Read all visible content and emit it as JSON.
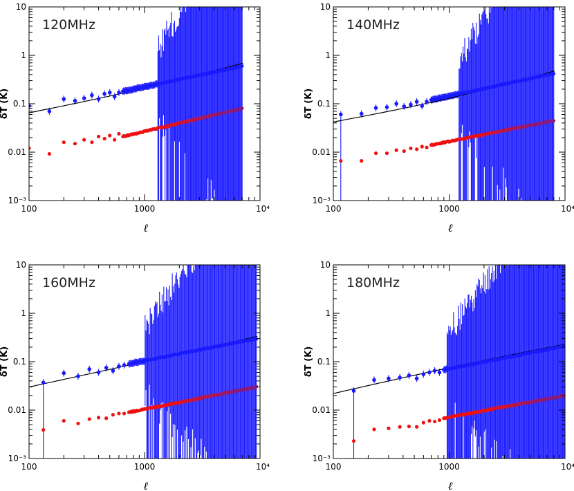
{
  "chart_data": [
    {
      "type": "scatter",
      "title": "120MHz",
      "xlabel": "ℓ",
      "ylabel": "δT (K)",
      "xscale": "log",
      "yscale": "log",
      "xlim": [
        100,
        10000
      ],
      "ylim": [
        0.001,
        10
      ],
      "xticks": [
        "100",
        "1000",
        "10⁴"
      ],
      "yticks": [
        "10⁻³",
        "0.01",
        "0.1",
        "1",
        "10"
      ],
      "ell_max": 7000,
      "model": {
        "at_100": 0.065,
        "at_max": 0.68,
        "at_1000": 0.21
      },
      "blue_points": [
        [
          100,
          0.09
        ],
        [
          150,
          0.07
        ],
        [
          200,
          0.125
        ],
        [
          250,
          0.115
        ],
        [
          300,
          0.13
        ],
        [
          350,
          0.15
        ],
        [
          400,
          0.125
        ],
        [
          450,
          0.16
        ],
        [
          500,
          0.17
        ],
        [
          550,
          0.14
        ],
        [
          600,
          0.17
        ],
        [
          650,
          0.18
        ]
      ],
      "blue_end": 0.6,
      "red_points": [
        [
          100,
          0.012
        ],
        [
          150,
          0.0092
        ],
        [
          200,
          0.016
        ],
        [
          250,
          0.015
        ],
        [
          300,
          0.018
        ],
        [
          350,
          0.016
        ],
        [
          400,
          0.021
        ],
        [
          450,
          0.019
        ],
        [
          500,
          0.022
        ],
        [
          550,
          0.018
        ],
        [
          600,
          0.024
        ],
        [
          650,
          0.021
        ]
      ],
      "red_end": 0.08,
      "errorbar_growth_from": 1300,
      "errorbar_min": 0.001,
      "errorbar_max": 10
    },
    {
      "type": "scatter",
      "title": "140MHz",
      "xlabel": "ℓ",
      "ylabel": "δT (K)",
      "xscale": "log",
      "yscale": "log",
      "xlim": [
        100,
        10000
      ],
      "ylim": [
        0.001,
        10
      ],
      "xticks": [
        "100",
        "1000",
        "10⁴"
      ],
      "yticks": [
        "10⁻³",
        "0.01",
        "0.1",
        "1",
        "10"
      ],
      "ell_max": 8000,
      "model": {
        "at_100": 0.042,
        "at_max": 0.47,
        "at_1000": 0.13
      },
      "blue_points": [
        [
          116,
          0.06
        ],
        [
          175,
          0.062
        ],
        [
          233,
          0.082
        ],
        [
          290,
          0.085
        ],
        [
          350,
          0.1
        ],
        [
          408,
          0.088
        ],
        [
          466,
          0.096
        ],
        [
          525,
          0.11
        ],
        [
          583,
          0.09
        ],
        [
          640,
          0.11
        ],
        [
          700,
          0.12
        ]
      ],
      "blue_end": 0.42,
      "red_points": [
        [
          116,
          0.0066
        ],
        [
          175,
          0.0066
        ],
        [
          233,
          0.0095
        ],
        [
          290,
          0.0095
        ],
        [
          350,
          0.011
        ],
        [
          408,
          0.0105
        ],
        [
          466,
          0.012
        ],
        [
          525,
          0.0115
        ],
        [
          583,
          0.013
        ],
        [
          640,
          0.0125
        ],
        [
          700,
          0.014
        ]
      ],
      "red_end": 0.045,
      "errorbar_growth_from": 1200,
      "errorbar_min": 0.001,
      "errorbar_max": 10
    },
    {
      "type": "scatter",
      "title": "160MHz",
      "xlabel": "ℓ",
      "ylabel": "δT (K)",
      "xscale": "log",
      "yscale": "log",
      "xlim": [
        100,
        10000
      ],
      "ylim": [
        0.001,
        10
      ],
      "xticks": [
        "100",
        "1000",
        "10⁴"
      ],
      "yticks": [
        "10⁻³",
        "0.01",
        "0.1",
        "1",
        "10"
      ],
      "ell_max": 9300,
      "model": {
        "at_100": 0.03,
        "at_max": 0.33,
        "at_1000": 0.1
      },
      "blue_points": [
        [
          133,
          0.037
        ],
        [
          200,
          0.058
        ],
        [
          266,
          0.05
        ],
        [
          333,
          0.07
        ],
        [
          400,
          0.06
        ],
        [
          466,
          0.075
        ],
        [
          533,
          0.065
        ],
        [
          600,
          0.08
        ],
        [
          666,
          0.085
        ],
        [
          733,
          0.09
        ]
      ],
      "blue_end": 0.3,
      "red_points": [
        [
          133,
          0.0039
        ],
        [
          200,
          0.006
        ],
        [
          266,
          0.0053
        ],
        [
          333,
          0.0065
        ],
        [
          400,
          0.007
        ],
        [
          466,
          0.0068
        ],
        [
          533,
          0.008
        ],
        [
          600,
          0.0085
        ],
        [
          666,
          0.0085
        ],
        [
          733,
          0.009
        ]
      ],
      "red_end": 0.03,
      "errorbar_growth_from": 1000,
      "errorbar_min": 0.001,
      "errorbar_max": 10
    },
    {
      "type": "scatter",
      "title": "180MHz",
      "xlabel": "ℓ",
      "ylabel": "δT (K)",
      "xscale": "log",
      "yscale": "log",
      "xlim": [
        100,
        10000
      ],
      "ylim": [
        0.001,
        10
      ],
      "xticks": [
        "100",
        "1000",
        "10⁴"
      ],
      "yticks": [
        "10⁻³",
        "0.01",
        "0.1",
        "1",
        "10"
      ],
      "ell_max": 10000,
      "model": {
        "at_100": 0.022,
        "at_max": 0.23,
        "at_1000": 0.075
      },
      "blue_points": [
        [
          150,
          0.025
        ],
        [
          225,
          0.042
        ],
        [
          300,
          0.045
        ],
        [
          375,
          0.047
        ],
        [
          450,
          0.052
        ],
        [
          525,
          0.045
        ],
        [
          600,
          0.055
        ],
        [
          675,
          0.06
        ],
        [
          750,
          0.065
        ],
        [
          825,
          0.06
        ],
        [
          900,
          0.068
        ]
      ],
      "blue_end": 0.21,
      "red_points": [
        [
          150,
          0.0023
        ],
        [
          225,
          0.004
        ],
        [
          300,
          0.0042
        ],
        [
          375,
          0.0045
        ],
        [
          450,
          0.0046
        ],
        [
          525,
          0.0045
        ],
        [
          600,
          0.0055
        ],
        [
          675,
          0.006
        ],
        [
          750,
          0.0058
        ],
        [
          825,
          0.0062
        ],
        [
          900,
          0.0068
        ]
      ],
      "red_end": 0.02,
      "errorbar_growth_from": 950,
      "errorbar_min": 0.001,
      "errorbar_max": 10
    }
  ],
  "colors": {
    "blue": "#1a1aff",
    "red": "#ee1111",
    "purple": "#8a1a7a",
    "model": "#000000",
    "frame": "#000000"
  }
}
